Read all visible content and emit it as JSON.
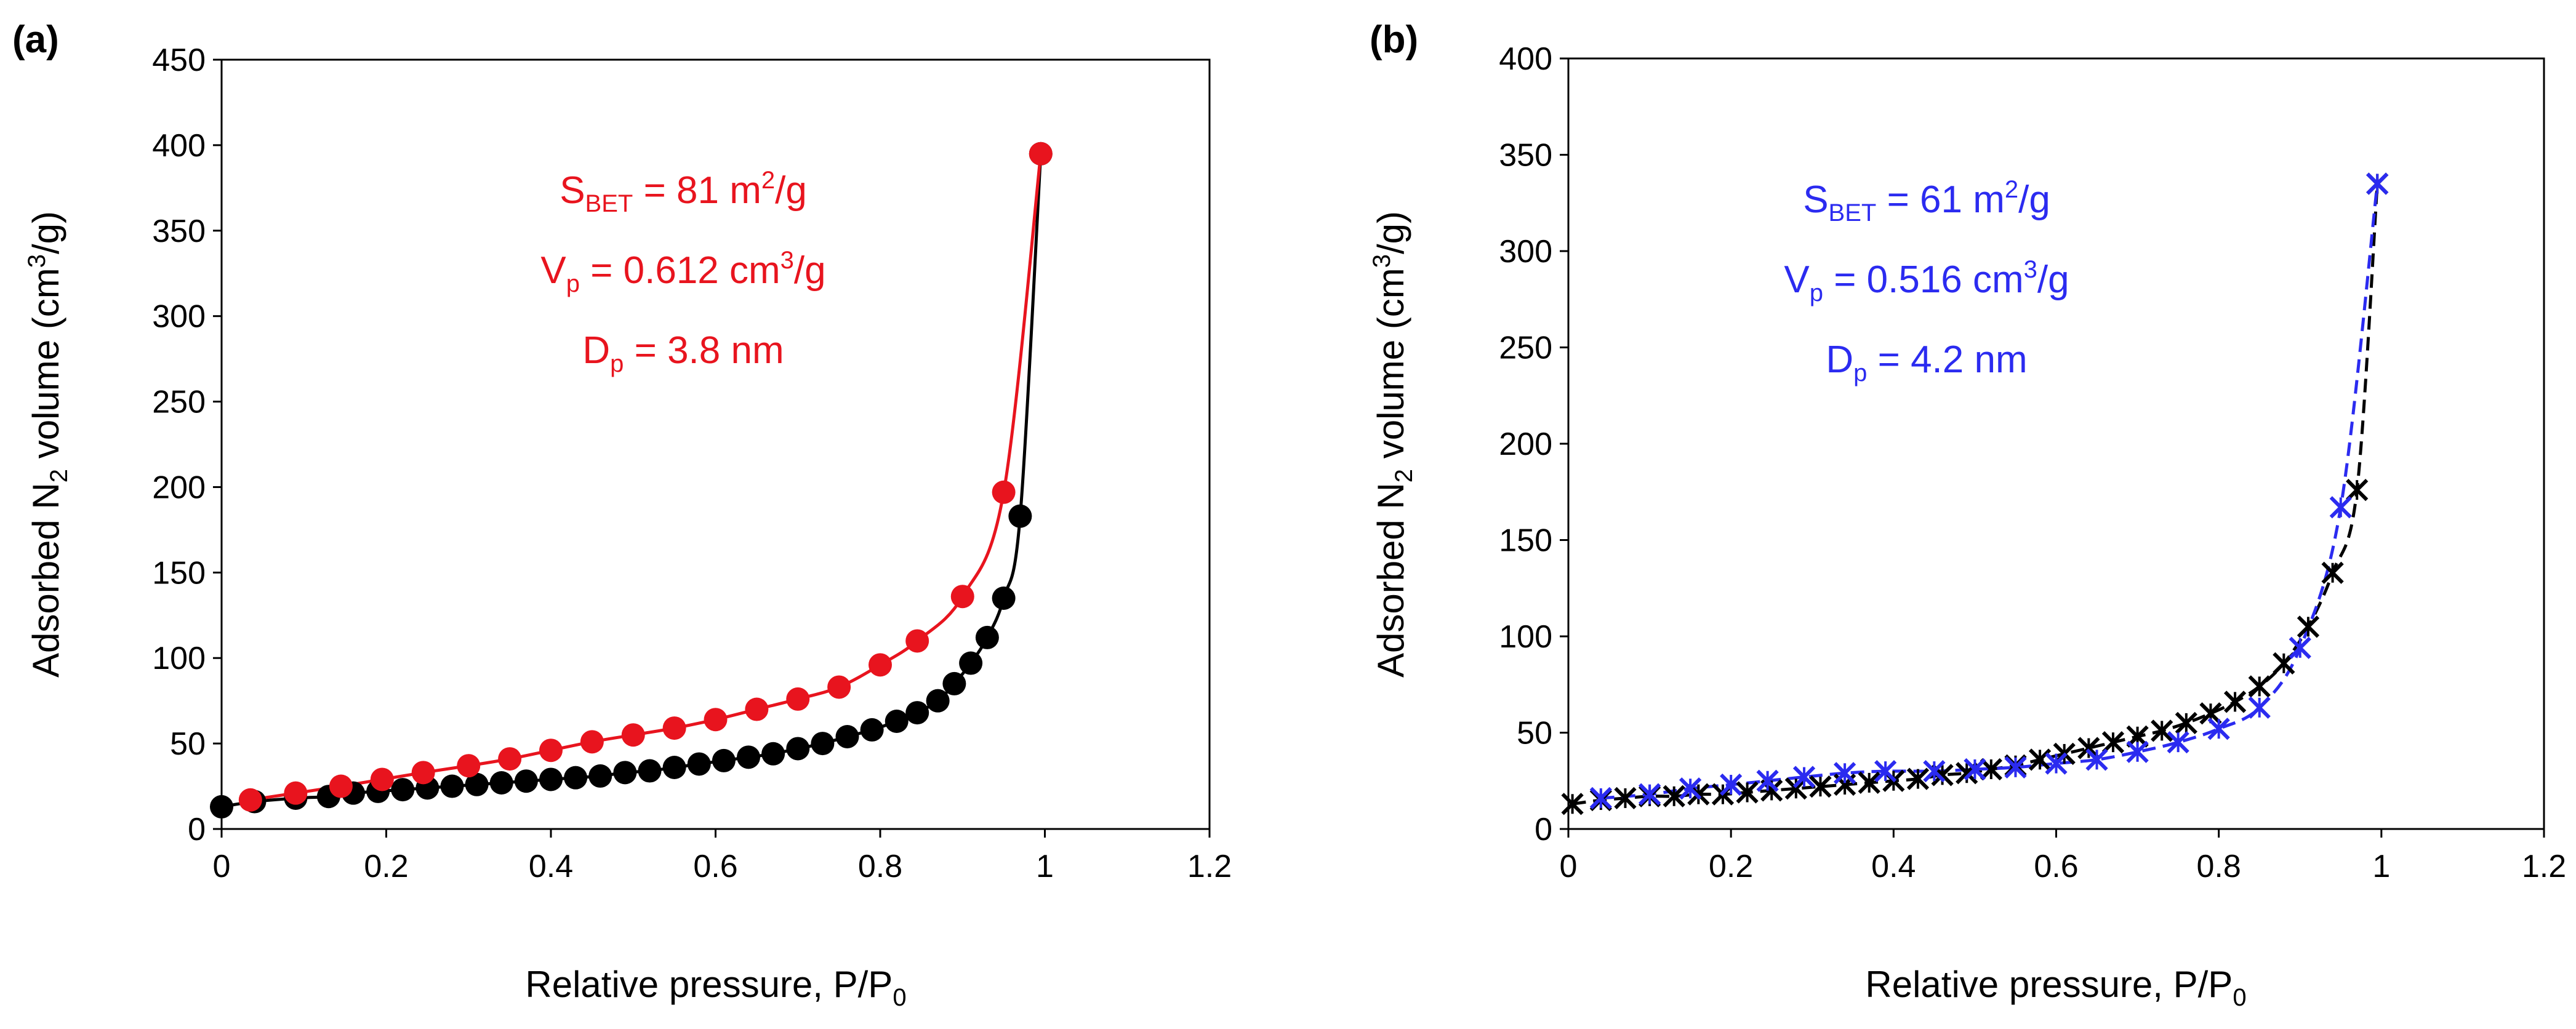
{
  "chart_data": [
    {
      "panel": "(a)",
      "type": "scatter",
      "xlabel": "Relative pressure, P/P",
      "xlabel_sub": "0",
      "ylabel_pre": "Adsorbed N",
      "ylabel_sub": "2",
      "ylabel_mid": " volume (cm",
      "ylabel_sup": "3",
      "ylabel_post": "/g)",
      "xlim": [
        0,
        1.2
      ],
      "ylim": [
        0,
        450
      ],
      "xticks": [
        "0",
        "0.2",
        "0.4",
        "0.6",
        "0.8",
        "1",
        "1.2"
      ],
      "yticks": [
        "0",
        "50",
        "100",
        "150",
        "200",
        "250",
        "300",
        "350",
        "400",
        "450"
      ],
      "grid": false,
      "annotation": {
        "color": "#e8141e",
        "lines": [
          {
            "main": "S",
            "sub": "BET",
            "text": " = 81 m",
            "sup": "2",
            "tail": "/g"
          },
          {
            "main": "V",
            "sub": "p",
            "text": " = 0.612 cm",
            "sup": "3",
            "tail": "/g"
          },
          {
            "main": "D",
            "sub": "p",
            "text": " = 3.8 nm",
            "sup": "",
            "tail": ""
          }
        ]
      },
      "series": [
        {
          "color": "#000000",
          "marker": "circle",
          "x": [
            0.0,
            0.04,
            0.09,
            0.13,
            0.16,
            0.19,
            0.22,
            0.25,
            0.28,
            0.31,
            0.34,
            0.37,
            0.4,
            0.43,
            0.46,
            0.49,
            0.52,
            0.55,
            0.58,
            0.61,
            0.64,
            0.67,
            0.7,
            0.73,
            0.76,
            0.79,
            0.82,
            0.845,
            0.87,
            0.89,
            0.91,
            0.93,
            0.95,
            0.97,
            0.995
          ],
          "y": [
            13,
            16,
            18,
            19,
            21,
            22,
            23,
            24,
            25,
            26,
            27,
            28,
            29,
            30,
            31,
            33,
            34,
            36,
            38,
            40,
            42,
            44,
            47,
            50,
            54,
            58,
            63,
            68,
            75,
            85,
            97,
            112,
            135,
            183,
            395
          ]
        },
        {
          "color": "#e8141e",
          "marker": "circle",
          "x": [
            0.035,
            0.09,
            0.145,
            0.195,
            0.245,
            0.3,
            0.35,
            0.4,
            0.45,
            0.5,
            0.55,
            0.6,
            0.65,
            0.7,
            0.75,
            0.8,
            0.845,
            0.9,
            0.95,
            0.995
          ],
          "y": [
            17,
            21,
            25,
            29,
            33,
            37,
            41,
            46,
            51,
            55,
            59,
            64,
            70,
            76,
            83,
            96,
            110,
            136,
            197,
            395
          ]
        }
      ]
    },
    {
      "panel": "(b)",
      "type": "scatter",
      "xlabel": "Relative pressure, P/P",
      "xlabel_sub": "0",
      "ylabel_pre": "Adsorbed N",
      "ylabel_sub": "2",
      "ylabel_mid": " volume (cm",
      "ylabel_sup": "3",
      "ylabel_post": "/g)",
      "xlim": [
        0,
        1.2
      ],
      "ylim": [
        0,
        400
      ],
      "xticks": [
        "0",
        "0.2",
        "0.4",
        "0.6",
        "0.8",
        "1",
        "1.2"
      ],
      "yticks": [
        "0",
        "50",
        "100",
        "150",
        "200",
        "250",
        "300",
        "350",
        "400"
      ],
      "grid": false,
      "annotation": {
        "color": "#2b2bf0",
        "lines": [
          {
            "main": "S",
            "sub": "BET",
            "text": " = 61 m",
            "sup": "2",
            "tail": "/g"
          },
          {
            "main": "V",
            "sub": "p",
            "text": " = 0.516 cm",
            "sup": "3",
            "tail": "/g"
          },
          {
            "main": "D",
            "sub": "p",
            "text": " = 4.2 nm",
            "sup": "",
            "tail": ""
          }
        ]
      },
      "series": [
        {
          "color": "#000000",
          "marker": "x",
          "x": [
            0.005,
            0.04,
            0.07,
            0.1,
            0.13,
            0.16,
            0.19,
            0.22,
            0.25,
            0.28,
            0.31,
            0.34,
            0.37,
            0.4,
            0.43,
            0.46,
            0.49,
            0.52,
            0.55,
            0.58,
            0.61,
            0.64,
            0.67,
            0.7,
            0.73,
            0.76,
            0.79,
            0.82,
            0.85,
            0.88,
            0.91,
            0.94,
            0.97,
            0.995
          ],
          "y": [
            13,
            15,
            16,
            17,
            17,
            18,
            18,
            19,
            20,
            21,
            22,
            23,
            24,
            25,
            26,
            28,
            29,
            31,
            33,
            36,
            39,
            42,
            45,
            48,
            51,
            55,
            60,
            66,
            74,
            86,
            105,
            133,
            176,
            335
          ]
        },
        {
          "color": "#2b2bf0",
          "marker": "x",
          "x": [
            0.04,
            0.1,
            0.15,
            0.2,
            0.245,
            0.29,
            0.34,
            0.39,
            0.45,
            0.5,
            0.55,
            0.6,
            0.65,
            0.7,
            0.75,
            0.8,
            0.85,
            0.9,
            0.95,
            0.995
          ],
          "y": [
            16,
            18,
            21,
            23,
            25,
            27,
            29,
            30,
            30,
            31,
            32,
            34,
            36,
            40,
            45,
            52,
            63,
            94,
            167,
            335
          ]
        }
      ]
    }
  ]
}
